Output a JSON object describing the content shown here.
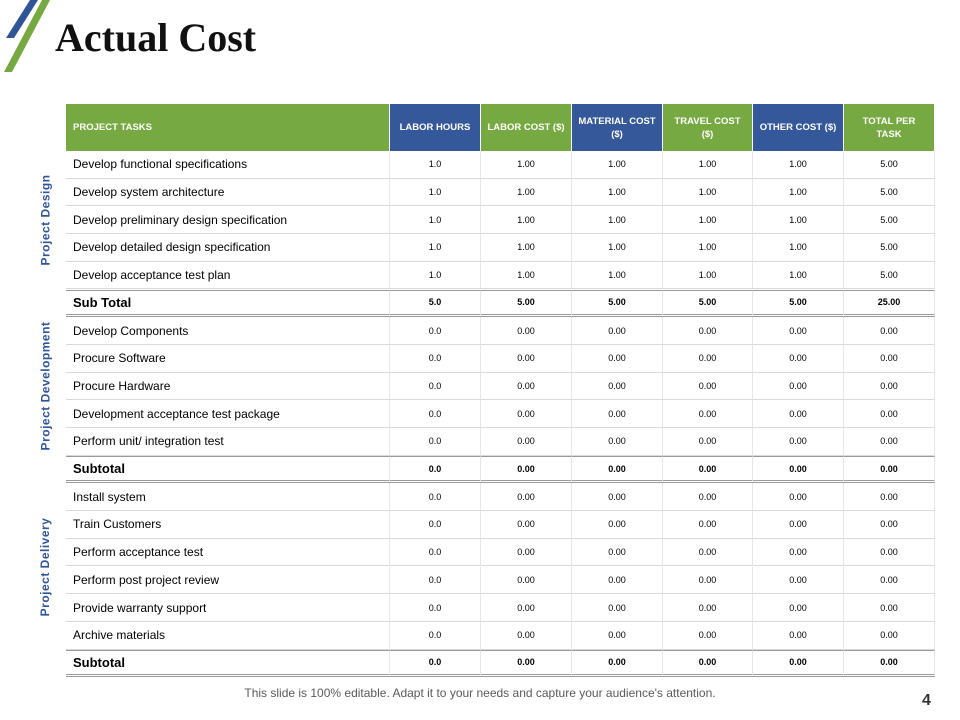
{
  "header": {
    "title": "Actual Cost"
  },
  "table": {
    "columns": [
      "PROJECT TASKS",
      "LABOR HOURS",
      "LABOR COST ($)",
      "MATERIAL COST ($)",
      "TRAVEL COST ($)",
      "OTHER COST ($)",
      "TOTAL PER TASK"
    ],
    "groups": [
      {
        "label": "Project Design",
        "rows": [
          [
            "Develop functional specifications",
            "1.0",
            "1.00",
            "1.00",
            "1.00",
            "1.00",
            "5.00"
          ],
          [
            "Develop system architecture",
            "1.0",
            "1.00",
            "1.00",
            "1.00",
            "1.00",
            "5.00"
          ],
          [
            "Develop preliminary design specification",
            "1.0",
            "1.00",
            "1.00",
            "1.00",
            "1.00",
            "5.00"
          ],
          [
            "Develop detailed design specification",
            "1.0",
            "1.00",
            "1.00",
            "1.00",
            "1.00",
            "5.00"
          ],
          [
            "Develop acceptance test plan",
            "1.0",
            "1.00",
            "1.00",
            "1.00",
            "1.00",
            "5.00"
          ]
        ],
        "subtotal": [
          "Sub Total",
          "5.0",
          "5.00",
          "5.00",
          "5.00",
          "5.00",
          "25.00"
        ]
      },
      {
        "label": "Project Development",
        "rows": [
          [
            "Develop Components",
            "0.0",
            "0.00",
            "0.00",
            "0.00",
            "0.00",
            "0.00"
          ],
          [
            "Procure Software",
            "0.0",
            "0.00",
            "0.00",
            "0.00",
            "0.00",
            "0.00"
          ],
          [
            "Procure Hardware",
            "0.0",
            "0.00",
            "0.00",
            "0.00",
            "0.00",
            "0.00"
          ],
          [
            "Development acceptance test package",
            "0.0",
            "0.00",
            "0.00",
            "0.00",
            "0.00",
            "0.00"
          ],
          [
            "Perform unit/ integration test",
            "0.0",
            "0.00",
            "0.00",
            "0.00",
            "0.00",
            "0.00"
          ]
        ],
        "subtotal": [
          "Subtotal",
          "0.0",
          "0.00",
          "0.00",
          "0.00",
          "0.00",
          "0.00"
        ]
      },
      {
        "label": "Project Delivery",
        "rows": [
          [
            "Install system",
            "0.0",
            "0.00",
            "0.00",
            "0.00",
            "0.00",
            "0.00"
          ],
          [
            "Train Customers",
            "0.0",
            "0.00",
            "0.00",
            "0.00",
            "0.00",
            "0.00"
          ],
          [
            "Perform acceptance test",
            "0.0",
            "0.00",
            "0.00",
            "0.00",
            "0.00",
            "0.00"
          ],
          [
            "Perform post project review",
            "0.0",
            "0.00",
            "0.00",
            "0.00",
            "0.00",
            "0.00"
          ],
          [
            "Provide warranty support",
            "0.0",
            "0.00",
            "0.00",
            "0.00",
            "0.00",
            "0.00"
          ],
          [
            "Archive materials",
            "0.0",
            "0.00",
            "0.00",
            "0.00",
            "0.00",
            "0.00"
          ]
        ],
        "subtotal": [
          "Subtotal",
          "0.0",
          "0.00",
          "0.00",
          "0.00",
          "0.00",
          "0.00"
        ]
      }
    ]
  },
  "footer": {
    "note": "This slide is 100% editable. Adapt it to your needs and capture your audience's attention.",
    "page": "4"
  }
}
